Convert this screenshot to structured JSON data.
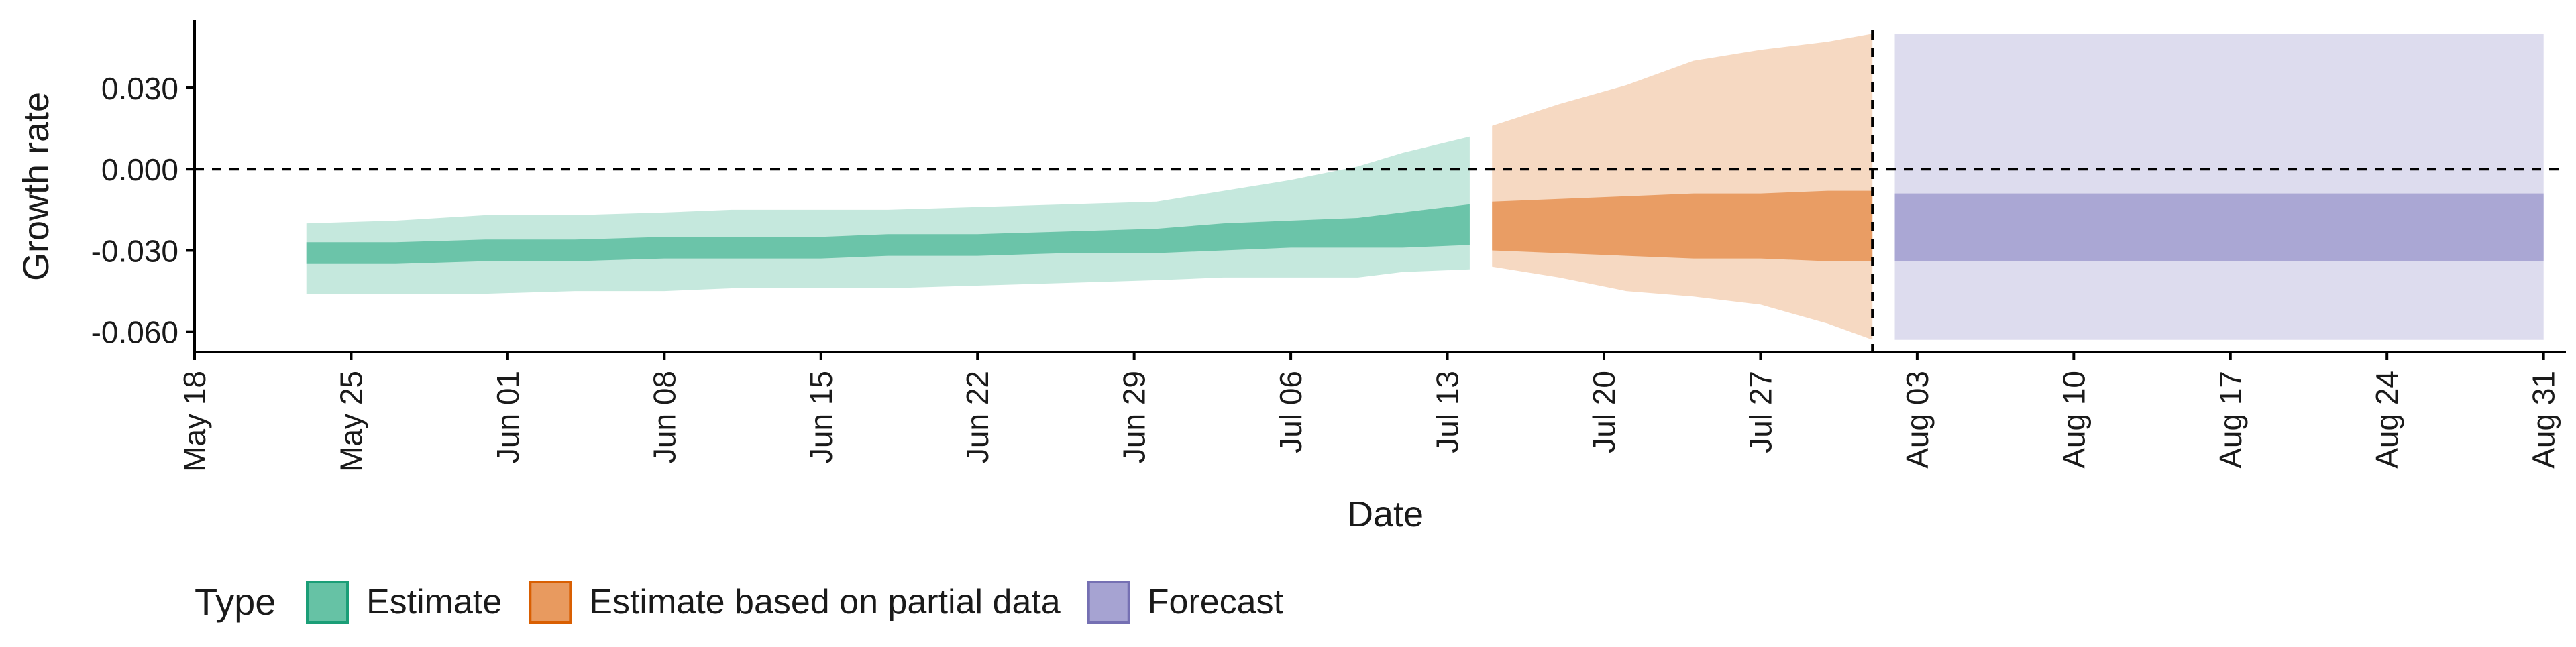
{
  "chart_data": {
    "type": "area",
    "xlabel": "Date",
    "ylabel": "Growth rate",
    "x_range": [
      "2021-05-18",
      "2021-09-01"
    ],
    "ylim": [
      -0.0675,
      0.055
    ],
    "y_ticks": [
      {
        "value": 0.03,
        "label": "0.030"
      },
      {
        "value": 0.0,
        "label": "0.000"
      },
      {
        "value": -0.03,
        "label": "-0.030"
      },
      {
        "value": -0.06,
        "label": "-0.060"
      }
    ],
    "x_ticks": [
      {
        "date": "2021-05-18",
        "label": "May 18"
      },
      {
        "date": "2021-05-25",
        "label": "May 25"
      },
      {
        "date": "2021-06-01",
        "label": "Jun 01"
      },
      {
        "date": "2021-06-08",
        "label": "Jun 08"
      },
      {
        "date": "2021-06-15",
        "label": "Jun 15"
      },
      {
        "date": "2021-06-22",
        "label": "Jun 22"
      },
      {
        "date": "2021-06-29",
        "label": "Jun 29"
      },
      {
        "date": "2021-07-06",
        "label": "Jul 06"
      },
      {
        "date": "2021-07-13",
        "label": "Jul 13"
      },
      {
        "date": "2021-07-20",
        "label": "Jul 20"
      },
      {
        "date": "2021-07-27",
        "label": "Jul 27"
      },
      {
        "date": "2021-08-03",
        "label": "Aug 03"
      },
      {
        "date": "2021-08-10",
        "label": "Aug 10"
      },
      {
        "date": "2021-08-17",
        "label": "Aug 17"
      },
      {
        "date": "2021-08-24",
        "label": "Aug 24"
      },
      {
        "date": "2021-08-31",
        "label": "Aug 31"
      }
    ],
    "reference_lines": {
      "horizontal_y": 0.0,
      "vertical_date": "2021-08-01"
    },
    "grid": false,
    "legend": {
      "title": "Type",
      "position": "bottom-left"
    },
    "series": [
      {
        "name": "Estimate",
        "color": "#1b9e77",
        "fill": "#66c2a5",
        "points": [
          {
            "date": "2021-05-23",
            "lo90": -0.046,
            "lo50": -0.035,
            "hi50": -0.027,
            "hi90": -0.02
          },
          {
            "date": "2021-05-27",
            "lo90": -0.046,
            "lo50": -0.035,
            "hi50": -0.027,
            "hi90": -0.019
          },
          {
            "date": "2021-05-31",
            "lo90": -0.046,
            "lo50": -0.034,
            "hi50": -0.026,
            "hi90": -0.017
          },
          {
            "date": "2021-06-04",
            "lo90": -0.045,
            "lo50": -0.034,
            "hi50": -0.026,
            "hi90": -0.017
          },
          {
            "date": "2021-06-08",
            "lo90": -0.045,
            "lo50": -0.033,
            "hi50": -0.025,
            "hi90": -0.016
          },
          {
            "date": "2021-06-11",
            "lo90": -0.044,
            "lo50": -0.033,
            "hi50": -0.025,
            "hi90": -0.015
          },
          {
            "date": "2021-06-15",
            "lo90": -0.044,
            "lo50": -0.033,
            "hi50": -0.025,
            "hi90": -0.015
          },
          {
            "date": "2021-06-18",
            "lo90": -0.044,
            "lo50": -0.032,
            "hi50": -0.024,
            "hi90": -0.015
          },
          {
            "date": "2021-06-22",
            "lo90": -0.043,
            "lo50": -0.032,
            "hi50": -0.024,
            "hi90": -0.014
          },
          {
            "date": "2021-06-26",
            "lo90": -0.042,
            "lo50": -0.031,
            "hi50": -0.023,
            "hi90": -0.013
          },
          {
            "date": "2021-06-30",
            "lo90": -0.041,
            "lo50": -0.031,
            "hi50": -0.022,
            "hi90": -0.012
          },
          {
            "date": "2021-07-03",
            "lo90": -0.04,
            "lo50": -0.03,
            "hi50": -0.02,
            "hi90": -0.008
          },
          {
            "date": "2021-07-06",
            "lo90": -0.04,
            "lo50": -0.029,
            "hi50": -0.019,
            "hi90": -0.004
          },
          {
            "date": "2021-07-09",
            "lo90": -0.04,
            "lo50": -0.029,
            "hi50": -0.018,
            "hi90": 0.001
          },
          {
            "date": "2021-07-11",
            "lo90": -0.038,
            "lo50": -0.029,
            "hi50": -0.016,
            "hi90": 0.006
          },
          {
            "date": "2021-07-14",
            "lo90": -0.037,
            "lo50": -0.028,
            "hi50": -0.013,
            "hi90": 0.012
          }
        ]
      },
      {
        "name": "Estimate based on partial data",
        "color": "#d95f02",
        "fill": "#e89a5f",
        "points": [
          {
            "date": "2021-07-15",
            "lo90": -0.036,
            "lo50": -0.03,
            "hi50": -0.012,
            "hi90": 0.016
          },
          {
            "date": "2021-07-18",
            "lo90": -0.04,
            "lo50": -0.031,
            "hi50": -0.011,
            "hi90": 0.024
          },
          {
            "date": "2021-07-21",
            "lo90": -0.045,
            "lo50": -0.032,
            "hi50": -0.01,
            "hi90": 0.031
          },
          {
            "date": "2021-07-24",
            "lo90": -0.047,
            "lo50": -0.033,
            "hi50": -0.009,
            "hi90": 0.04
          },
          {
            "date": "2021-07-27",
            "lo90": -0.05,
            "lo50": -0.033,
            "hi50": -0.009,
            "hi90": 0.044
          },
          {
            "date": "2021-07-30",
            "lo90": -0.057,
            "lo50": -0.034,
            "hi50": -0.008,
            "hi90": 0.047
          },
          {
            "date": "2021-08-01",
            "lo90": -0.063,
            "lo50": -0.034,
            "hi50": -0.008,
            "hi90": 0.05
          }
        ]
      },
      {
        "name": "Forecast",
        "color": "#7570b3",
        "fill": "#a6a3d2",
        "points": [
          {
            "date": "2021-08-02",
            "lo90": -0.063,
            "lo50": -0.034,
            "hi50": -0.009,
            "hi90": 0.05
          },
          {
            "date": "2021-08-31",
            "lo90": -0.063,
            "lo50": -0.034,
            "hi50": -0.009,
            "hi90": 0.05
          }
        ]
      }
    ]
  }
}
